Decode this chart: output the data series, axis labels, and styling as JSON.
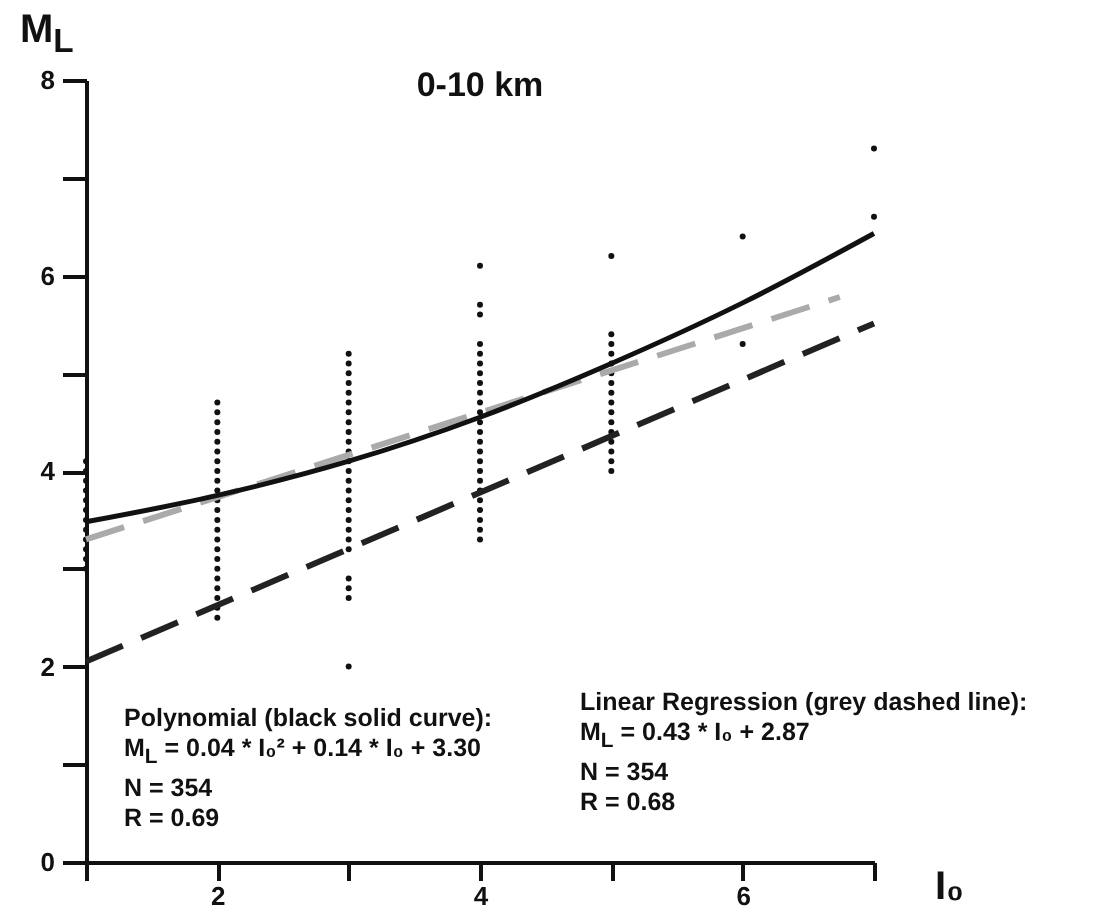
{
  "chart_data": {
    "type": "scatter",
    "title": "0-10 km",
    "xlabel": "I₀",
    "ylabel": "M$_{L}$",
    "xlim": [
      1,
      7
    ],
    "xticks": [
      {
        "value": 1,
        "label": null
      },
      2,
      {
        "value": 3,
        "label": null
      },
      4,
      {
        "value": 5,
        "label": null
      },
      6,
      {
        "value": 7,
        "label": null
      }
    ],
    "ylim": [
      0,
      8
    ],
    "yticks": [
      0,
      {
        "value": 1,
        "label": null
      },
      2,
      {
        "value": 3,
        "label": null
      },
      4,
      {
        "value": 5,
        "label": null
      },
      6,
      {
        "value": 7,
        "label": null
      },
      8
    ],
    "series": [
      {
        "marker": "circle",
        "color": "#111111",
        "x": [
          1,
          1,
          1,
          1,
          1,
          1,
          1,
          1,
          1,
          1,
          1,
          1,
          2,
          2,
          2,
          2,
          2,
          2,
          2,
          2,
          2,
          2,
          2,
          2,
          2,
          2,
          2,
          2,
          2,
          2,
          2,
          2,
          2,
          2,
          2,
          3,
          3,
          3,
          3,
          3,
          3,
          3,
          3,
          3,
          3,
          3,
          3,
          3,
          3,
          3,
          3,
          3,
          3,
          3,
          3,
          3,
          3,
          3,
          3,
          3,
          4,
          4,
          4,
          4,
          4,
          4,
          4,
          4,
          4,
          4,
          4,
          4,
          4,
          4,
          4,
          4,
          4,
          4,
          4,
          4,
          4,
          4,
          4,
          4,
          5,
          5,
          5,
          5,
          5,
          5,
          5,
          5,
          5,
          5,
          5,
          5,
          5,
          5,
          5,
          5,
          6,
          6,
          7,
          7
        ],
        "values": [
          3.0,
          3.1,
          3.2,
          3.3,
          3.4,
          3.5,
          3.6,
          3.7,
          3.8,
          3.9,
          4.0,
          4.1,
          2.5,
          2.6,
          2.7,
          2.8,
          2.9,
          3.0,
          3.1,
          3.2,
          3.3,
          3.4,
          3.5,
          3.6,
          3.7,
          3.8,
          3.9,
          4.0,
          4.1,
          4.2,
          4.3,
          4.4,
          4.5,
          4.6,
          4.7,
          2.0,
          2.7,
          2.8,
          2.9,
          3.2,
          3.3,
          3.4,
          3.5,
          3.6,
          3.7,
          3.8,
          3.9,
          4.0,
          4.1,
          4.2,
          4.3,
          4.4,
          4.5,
          4.6,
          4.7,
          4.8,
          4.9,
          5.0,
          5.1,
          5.2,
          3.3,
          3.4,
          3.5,
          3.6,
          3.7,
          3.8,
          3.9,
          4.0,
          4.1,
          4.2,
          4.3,
          4.4,
          4.5,
          4.6,
          4.7,
          4.8,
          4.9,
          5.0,
          5.1,
          5.2,
          5.3,
          5.6,
          5.7,
          6.1,
          4.0,
          4.1,
          4.2,
          4.3,
          4.4,
          4.5,
          4.6,
          4.7,
          4.8,
          4.9,
          5.0,
          5.1,
          5.2,
          5.3,
          5.4,
          6.2,
          5.3,
          6.4,
          6.6,
          7.3
        ]
      },
      {
        "type": "line",
        "marker": "none",
        "color": "#aaaaaa",
        "line_style": "dashed",
        "x": [
          1,
          6.74
        ],
        "values": [
          3.3,
          5.78
        ]
      },
      {
        "type": "line",
        "marker": "none",
        "color": "#222222",
        "line_style": "dashed",
        "x": [
          1,
          7
        ],
        "values": [
          2.05,
          5.51
        ]
      },
      {
        "type": "line",
        "marker": "none",
        "color": "#111111",
        "line_style": "solid",
        "x": [
          1,
          2,
          3,
          4,
          5,
          6,
          7
        ],
        "values": [
          3.48,
          3.75,
          4.1,
          4.55,
          5.1,
          5.72,
          6.43
        ]
      }
    ],
    "annotations": [
      "Polynomial (black solid curve):",
      "M$_{L}$ = 0.04 * I₀² + 0.14 * I₀ + 3.30",
      "N = 354",
      "R = 0.69",
      "Linear Regression (grey dashed line):",
      "M$_{L}$ = 0.43 * I₀ + 2.87",
      "N = 354",
      "R = 0.68"
    ]
  }
}
